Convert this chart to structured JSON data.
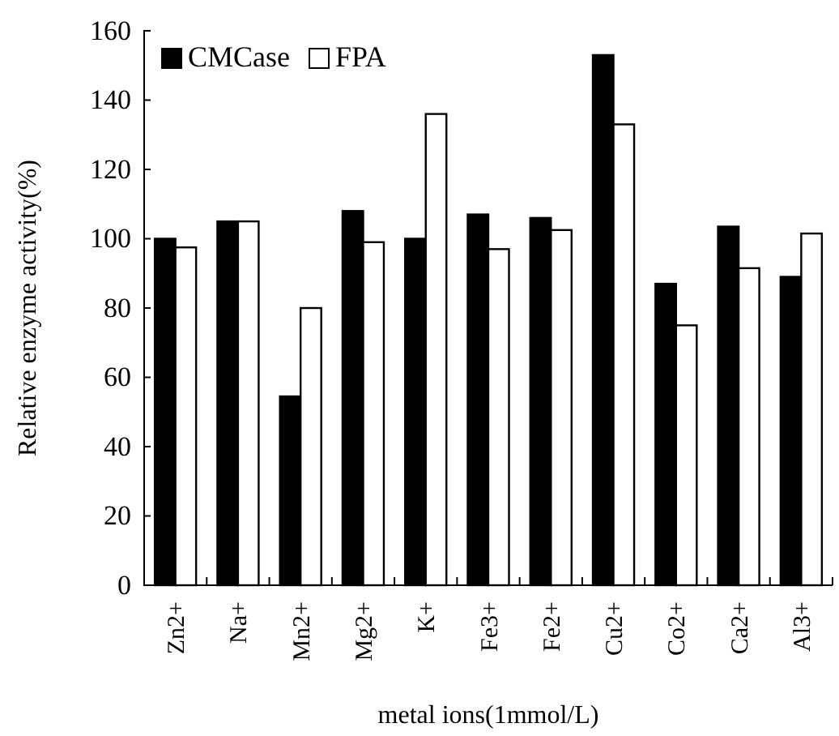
{
  "chart_data": {
    "type": "bar",
    "xlabel": "metal ions(1mmol/L)",
    "ylabel": "Relative enzyme activity(%)",
    "categories": [
      "Zn2+",
      "Na+",
      "Mn2+",
      "Mg2+",
      "K+",
      "Fe3+",
      "Fe2+",
      "Cu2+",
      "Co2+",
      "Ca2+",
      "Al3+"
    ],
    "series": [
      {
        "name": "CMCase",
        "color": "#000000",
        "values": [
          100,
          105,
          54.5,
          108,
          100,
          107,
          106,
          153,
          87,
          103.5,
          89
        ]
      },
      {
        "name": "FPA",
        "color": "#ffffff",
        "values": [
          97.5,
          105,
          80,
          99,
          136,
          97,
          102.5,
          133,
          75,
          91.5,
          101.5
        ]
      }
    ],
    "ylim": [
      0,
      160
    ],
    "yticks": [
      0,
      20,
      40,
      60,
      80,
      100,
      120,
      140,
      160
    ],
    "grid": false,
    "legend": "top left"
  }
}
